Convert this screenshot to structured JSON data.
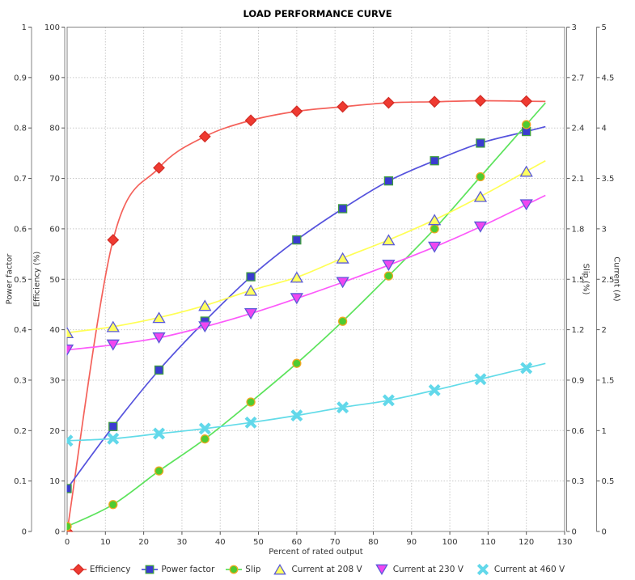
{
  "chart_data": {
    "type": "line",
    "title": "LOAD PERFORMANCE CURVE",
    "xlabel": "Percent of rated output",
    "grid": true,
    "legend_position": "bottom",
    "categories": [
      0,
      12,
      24,
      36,
      48,
      60,
      72,
      84,
      96,
      108,
      120
    ],
    "axes": {
      "x": {
        "label": "Percent of rated output",
        "min": 0,
        "max": 130,
        "step": 10,
        "ticks": [
          "0",
          "10",
          "20",
          "30",
          "40",
          "50",
          "60",
          "70",
          "80",
          "90",
          "100",
          "110",
          "120",
          "130"
        ]
      },
      "power_factor": {
        "label": "Power factor",
        "min": 0,
        "max": 1,
        "step": 0.1,
        "ticks": [
          "0",
          "0.1",
          "0.2",
          "0.3",
          "0.4",
          "0.5",
          "0.6",
          "0.7",
          "0.8",
          "0.9",
          "1"
        ]
      },
      "efficiency": {
        "label": "Efficiency (%)",
        "min": 0,
        "max": 100,
        "step": 10,
        "ticks": [
          "0",
          "10",
          "20",
          "30",
          "40",
          "50",
          "60",
          "70",
          "80",
          "90",
          "100"
        ]
      },
      "slip": {
        "label": "Slip (%)",
        "min": 0,
        "max": 3,
        "step": 0.3,
        "ticks": [
          "0",
          "0.3",
          "0.6",
          "0.9",
          "1.2",
          "1.5",
          "1.8",
          "2.1",
          "2.4",
          "2.7",
          "3"
        ]
      },
      "current": {
        "label": "Current (A)",
        "min": 0,
        "max": 5,
        "step": 0.5,
        "ticks": [
          "0",
          "0.5",
          "1",
          "1.5",
          "2",
          "2.5",
          "3",
          "3.5",
          "4",
          "4.5",
          "5"
        ]
      }
    },
    "series": [
      {
        "name": "Efficiency",
        "axis": "efficiency",
        "marker": "diamond",
        "line_color": "#f4615a",
        "fill": "#ef3a31",
        "stroke": "#d42d26",
        "legend_line": true,
        "values": [
          0,
          57.8,
          72.1,
          78.3,
          81.5,
          83.3,
          84.2,
          85.0,
          85.2,
          85.4,
          85.3
        ]
      },
      {
        "name": "Power factor",
        "axis": "power_factor",
        "marker": "square",
        "line_color": "#5552dd",
        "fill": "#3b3bd1",
        "stroke": "#3f9e3f",
        "legend_line": true,
        "values": [
          0.085,
          0.208,
          0.32,
          0.417,
          0.505,
          0.578,
          0.64,
          0.695,
          0.735,
          0.77,
          0.793
        ]
      },
      {
        "name": "Slip",
        "axis": "slip",
        "marker": "circle",
        "line_color": "#5ce35c",
        "fill": "#4ecb31",
        "stroke": "#efa720",
        "legend_line": true,
        "values": [
          0.03,
          0.16,
          0.36,
          0.55,
          0.77,
          1.0,
          1.25,
          1.52,
          1.8,
          2.11,
          2.42
        ]
      },
      {
        "name": "Current at 208 V",
        "axis": "current",
        "marker": "triangle-up",
        "line_color": "#ffff55",
        "fill": "#ffff60",
        "stroke": "#5a5ad8",
        "legend_line": false,
        "values": [
          1.97,
          2.03,
          2.12,
          2.24,
          2.39,
          2.52,
          2.71,
          2.89,
          3.09,
          3.32,
          3.57
        ]
      },
      {
        "name": "Current at 230 V",
        "axis": "current",
        "marker": "triangle-down",
        "line_color": "#fc59fa",
        "fill": "#f046f0",
        "stroke": "#5a5ad8",
        "legend_line": false,
        "values": [
          1.8,
          1.85,
          1.92,
          2.03,
          2.16,
          2.31,
          2.47,
          2.64,
          2.82,
          3.02,
          3.24
        ]
      },
      {
        "name": "Current at 460 V",
        "axis": "current",
        "marker": "x",
        "line_color": "#62dbe8",
        "fill": "#62d8ea",
        "stroke": "#62d8ea",
        "legend_line": false,
        "values": [
          0.9,
          0.92,
          0.97,
          1.02,
          1.08,
          1.15,
          1.23,
          1.3,
          1.4,
          1.51,
          1.62
        ]
      }
    ],
    "colors": {
      "grid": "#c9c9c9",
      "frame": "#848484",
      "tick": "#555555",
      "tick_label": "#333333"
    }
  }
}
